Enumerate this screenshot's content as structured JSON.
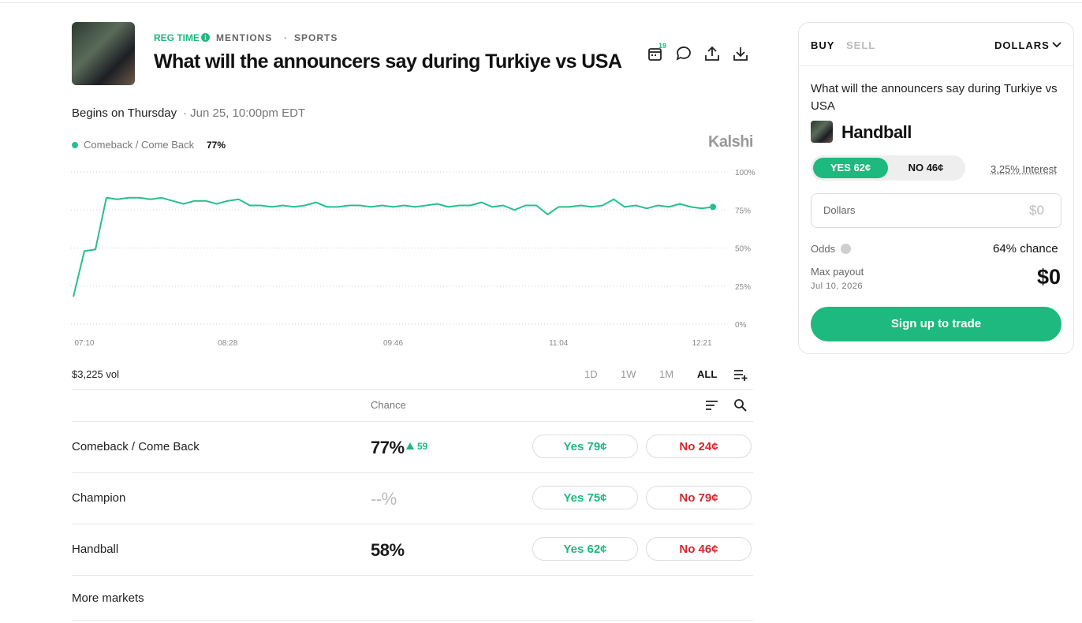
{
  "header": {
    "tags": [
      "REG TIME",
      "MENTIONS",
      "SPORTS"
    ],
    "title": "What will the announcers say during Turkiye vs USA",
    "notification_count": "19",
    "begins_label": "Begins on Thursday",
    "begins_time": "· Jun 25, 10:00pm EDT"
  },
  "chart_data": {
    "type": "line",
    "brand": "Kalshi",
    "categories": [
      null,
      "07:10",
      null,
      null,
      null,
      null,
      null,
      null,
      null,
      null,
      null,
      null,
      null,
      null,
      "08:28",
      null,
      null,
      null,
      null,
      null,
      null,
      null,
      null,
      null,
      null,
      null,
      null,
      null,
      null,
      "09:46",
      null,
      null,
      null,
      null,
      null,
      null,
      null,
      null,
      null,
      null,
      null,
      null,
      null,
      null,
      "11:04",
      null,
      null,
      null,
      null,
      null,
      null,
      null,
      null,
      null,
      null,
      null,
      null,
      "12:21",
      null
    ],
    "series": [
      {
        "name": "Comeback / Come Back",
        "color": "#27c08a",
        "last_value_label": "77%",
        "values": [
          18,
          48,
          49,
          83,
          82,
          83,
          83,
          82,
          83,
          81,
          79,
          81,
          81,
          79,
          81,
          82,
          78,
          78,
          77,
          78,
          77,
          78,
          80,
          77,
          77,
          78,
          78,
          77,
          78,
          77,
          78,
          77,
          78,
          79,
          77,
          78,
          78,
          80,
          77,
          78,
          75,
          78,
          78,
          72,
          77,
          77,
          78,
          77,
          78,
          82,
          77,
          78,
          76,
          78,
          77,
          79,
          77,
          76,
          77
        ]
      }
    ],
    "ylim": [
      0,
      100
    ],
    "yticks": [
      {
        "value": 0,
        "label": "0%"
      },
      {
        "value": 25,
        "label": "25%"
      },
      {
        "value": 50,
        "label": "50%"
      },
      {
        "value": 75,
        "label": "75%"
      },
      {
        "value": 100,
        "label": "100%"
      }
    ],
    "grid": true
  },
  "controls": {
    "volume": "$3,225 vol",
    "ranges": [
      "1D",
      "1W",
      "1M",
      "ALL"
    ],
    "chance_header": "Chance"
  },
  "markets": [
    {
      "name": "Comeback / Come Back",
      "chance": "77%",
      "change": "59",
      "yes": "Yes 79¢",
      "no": "No 24¢"
    },
    {
      "name": "Champion",
      "chance": "--%",
      "yes": "Yes 75¢",
      "no": "No 79¢"
    },
    {
      "name": "Handball",
      "chance": "58%",
      "yes": "Yes 62¢",
      "no": "No 46¢"
    }
  ],
  "more_markets": "More markets",
  "trade_panel": {
    "buy": "BUY",
    "sell": "SELL",
    "unit": "DOLLARS",
    "question": "What will the announcers say during Turkiye vs USA",
    "market": "Handball",
    "yes": "YES 62¢",
    "no": "NO 46¢",
    "interest": "3.25% Interest",
    "amount_label": "Dollars",
    "amount_value": "$0",
    "odds_label": "Odds",
    "odds_value": "64% chance",
    "payout_label": "Max payout",
    "payout_date": "Jul 10, 2026",
    "payout_value": "$0",
    "cta": "Sign up to trade"
  }
}
